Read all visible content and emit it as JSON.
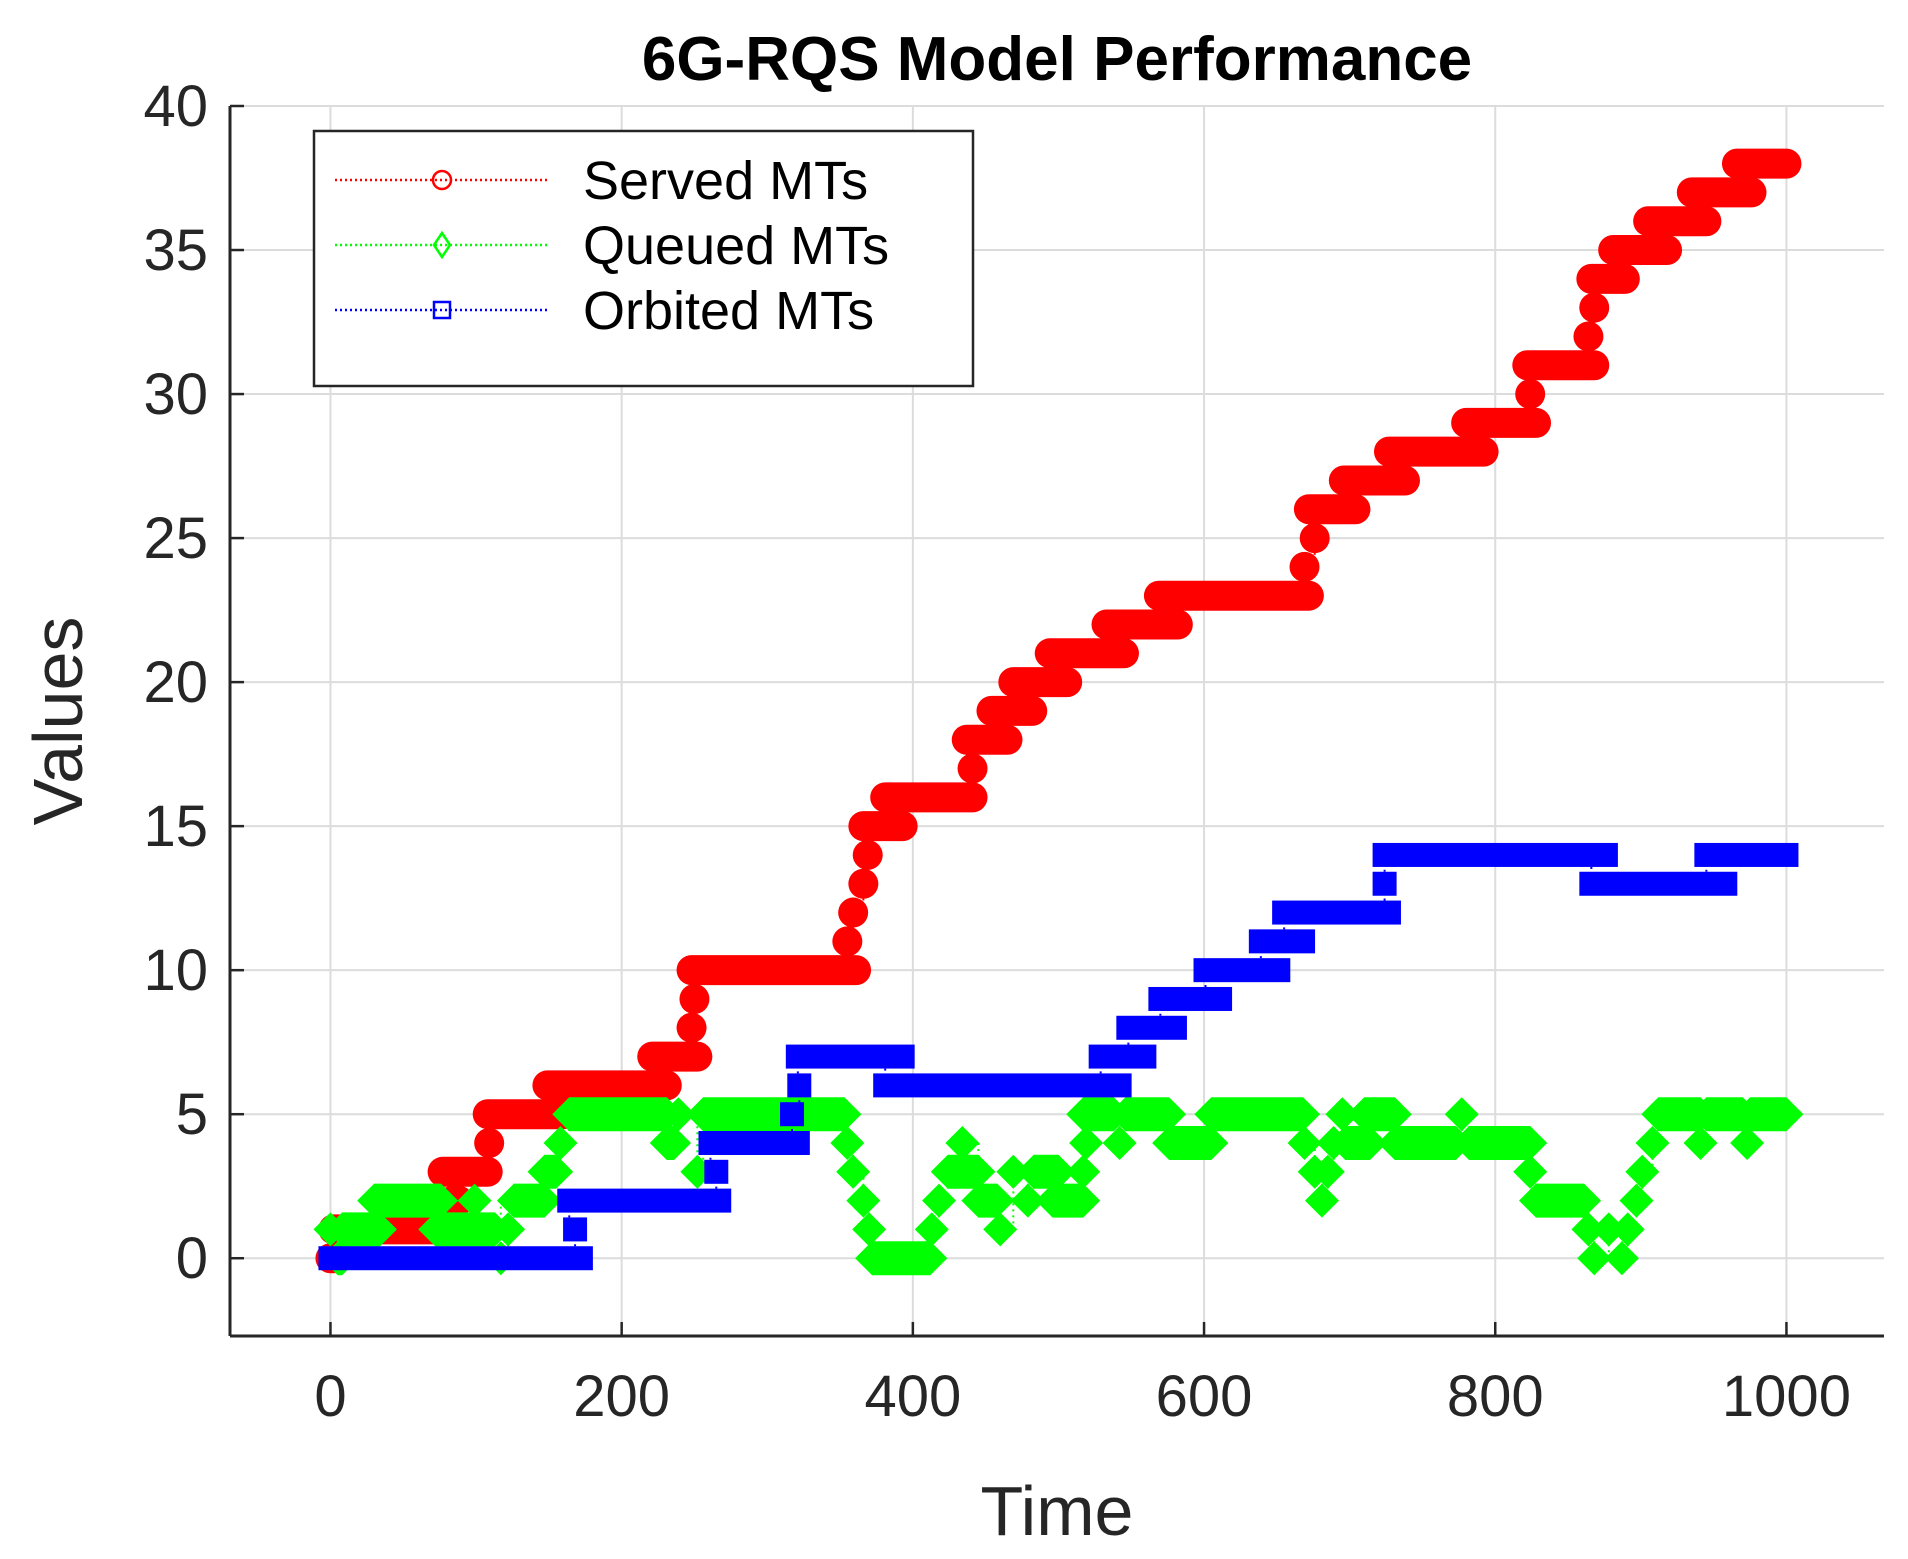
{
  "chart_data": {
    "type": "line",
    "title": "6G-RQS Model Performance",
    "xlabel": "Time",
    "ylabel": "Values",
    "xlim": [
      -69,
      1067
    ],
    "ylim": [
      -2.7,
      40
    ],
    "xticks": [
      "0",
      "200",
      "400",
      "600",
      "800",
      "1000"
    ],
    "yticks": [
      "0",
      "5",
      "10",
      "15",
      "20",
      "25",
      "30",
      "35",
      "40"
    ],
    "grid": true,
    "legend_position": "top-left",
    "series": [
      {
        "name": "Served MTs",
        "color": "#ff0000",
        "marker": "circle",
        "line_style": "dotted",
        "steps": [
          [
            0,
            2,
            0
          ],
          [
            2,
            82,
            1
          ],
          [
            84,
            88,
            2
          ],
          [
            77,
            108,
            3
          ],
          [
            109,
            109,
            4
          ],
          [
            108,
            160,
            5
          ],
          [
            149,
            231,
            6
          ],
          [
            221,
            252,
            7
          ],
          [
            248,
            248,
            8
          ],
          [
            250,
            250,
            9
          ],
          [
            248,
            361,
            10
          ],
          [
            355,
            355,
            11
          ],
          [
            359,
            359,
            12
          ],
          [
            366,
            366,
            13
          ],
          [
            369,
            369,
            14
          ],
          [
            366,
            393,
            15
          ],
          [
            381,
            441,
            16
          ],
          [
            441,
            441,
            17
          ],
          [
            437,
            465,
            18
          ],
          [
            454,
            482,
            19
          ],
          [
            469,
            506,
            20
          ],
          [
            494,
            545,
            21
          ],
          [
            533,
            582,
            22
          ],
          [
            569,
            672,
            23
          ],
          [
            669,
            669,
            24
          ],
          [
            676,
            676,
            25
          ],
          [
            672,
            704,
            26
          ],
          [
            696,
            738,
            27
          ],
          [
            727,
            792,
            28
          ],
          [
            780,
            828,
            29
          ],
          [
            824,
            824,
            30
          ],
          [
            822,
            868,
            31
          ],
          [
            864,
            864,
            32
          ],
          [
            868,
            868,
            33
          ],
          [
            866,
            889,
            34
          ],
          [
            881,
            918,
            35
          ],
          [
            905,
            945,
            36
          ],
          [
            935,
            976,
            37
          ],
          [
            966,
            1000,
            38
          ]
        ]
      },
      {
        "name": "Queued MTs",
        "color": "#00ff00",
        "marker": "diamond",
        "line_style": "dotted",
        "steps": [
          [
            0,
            0,
            1
          ],
          [
            5,
            8,
            0
          ],
          [
            8,
            34,
            1
          ],
          [
            30,
            76,
            2
          ],
          [
            72,
            113,
            1
          ],
          [
            99,
            99,
            2
          ],
          [
            117,
            117,
            0
          ],
          [
            122,
            122,
            1
          ],
          [
            126,
            147,
            2
          ],
          [
            147,
            155,
            3
          ],
          [
            158,
            158,
            4
          ],
          [
            164,
            231,
            5
          ],
          [
            231,
            236,
            4
          ],
          [
            239,
            239,
            5
          ],
          [
            252,
            252,
            3
          ],
          [
            256,
            353,
            5
          ],
          [
            355,
            355,
            4
          ],
          [
            359,
            359,
            3
          ],
          [
            366,
            366,
            2
          ],
          [
            370,
            370,
            1
          ],
          [
            372,
            412,
            0
          ],
          [
            413,
            413,
            1
          ],
          [
            418,
            418,
            2
          ],
          [
            424,
            445,
            3
          ],
          [
            434,
            434,
            4
          ],
          [
            445,
            458,
            2
          ],
          [
            460,
            460,
            1
          ],
          [
            469,
            469,
            3
          ],
          [
            479,
            479,
            2
          ],
          [
            483,
            500,
            3
          ],
          [
            496,
            517,
            2
          ],
          [
            517,
            517,
            3
          ],
          [
            519,
            519,
            4
          ],
          [
            517,
            538,
            5
          ],
          [
            542,
            542,
            4
          ],
          [
            546,
            576,
            5
          ],
          [
            576,
            605,
            4
          ],
          [
            605,
            668,
            5
          ],
          [
            669,
            669,
            4
          ],
          [
            676,
            676,
            3
          ],
          [
            681,
            681,
            2
          ],
          [
            685,
            685,
            3
          ],
          [
            689,
            689,
            4
          ],
          [
            695,
            695,
            5
          ],
          [
            697,
            714,
            4
          ],
          [
            710,
            731,
            5
          ],
          [
            731,
            773,
            4
          ],
          [
            777,
            777,
            5
          ],
          [
            782,
            824,
            4
          ],
          [
            824,
            824,
            3
          ],
          [
            828,
            861,
            2
          ],
          [
            864,
            864,
            1
          ],
          [
            868,
            868,
            0
          ],
          [
            878,
            878,
            1
          ],
          [
            887,
            887,
            0
          ],
          [
            891,
            891,
            1
          ],
          [
            897,
            897,
            2
          ],
          [
            901,
            901,
            3
          ],
          [
            908,
            908,
            4
          ],
          [
            912,
            941,
            5
          ],
          [
            941,
            941,
            4
          ],
          [
            945,
            970,
            5
          ],
          [
            973,
            973,
            4
          ],
          [
            975,
            1000,
            5
          ]
        ]
      },
      {
        "name": "Orbited MTs",
        "color": "#0000ff",
        "marker": "square",
        "line_style": "dotted",
        "steps": [
          [
            0,
            172,
            0
          ],
          [
            168,
            168,
            1
          ],
          [
            164,
            267,
            2
          ],
          [
            265,
            265,
            3
          ],
          [
            261,
            321,
            4
          ],
          [
            317,
            317,
            5
          ],
          [
            322,
            322,
            6
          ],
          [
            321,
            393,
            7
          ],
          [
            381,
            542,
            6
          ],
          [
            529,
            559,
            7
          ],
          [
            548,
            580,
            8
          ],
          [
            570,
            611,
            9
          ],
          [
            601,
            651,
            10
          ],
          [
            639,
            668,
            11
          ],
          [
            655,
            727,
            12
          ],
          [
            724,
            724,
            13
          ],
          [
            724,
            876,
            14
          ],
          [
            866,
            958,
            13
          ],
          [
            945,
            1000,
            14
          ]
        ]
      }
    ]
  }
}
